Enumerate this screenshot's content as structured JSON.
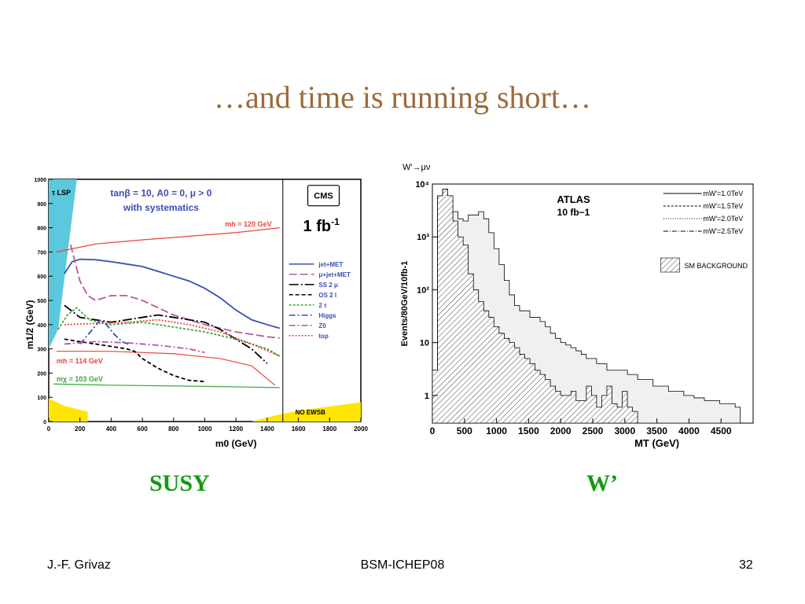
{
  "slide": {
    "title": "…and time is running short…",
    "captions": {
      "left": "SUSY",
      "right": "W’"
    },
    "footer": {
      "left": "J.-F. Grivaz",
      "center": "BSM-ICHEP08",
      "right": "32"
    },
    "caption_color": "#139a13",
    "title_color": "#9b6b3a"
  },
  "chart_data": [
    {
      "type": "line",
      "xlabel": "m0 (GeV)",
      "ylabel": "m1/2 (GeV)",
      "xlim": [
        0,
        2000
      ],
      "ylim": [
        0,
        1000
      ],
      "x_ticks": [
        "0",
        "200",
        "400",
        "600",
        "800",
        "1000",
        "1200",
        "1400",
        "1600",
        "1800",
        "2000"
      ],
      "y_ticks": [
        "0",
        "100",
        "200",
        "300",
        "400",
        "500",
        "600",
        "700",
        "800",
        "900",
        "1000"
      ],
      "header": "tanβ = 10, A0 = 0, μ > 0",
      "subheader": "with systematics",
      "experiment": "CMS",
      "luminosity": "1 fb",
      "luminosity_exp": "-1",
      "regions": {
        "lsp": "τ LSP",
        "no_ewsb": "NO EWSB"
      },
      "mass_labels": [
        "mh = 120 GeV",
        "mh = 114 GeV",
        "mχ = 103 GeV"
      ],
      "colors": {
        "lsp": "#5bc8dd",
        "ewsb": "#ffe600",
        "mh": "#e8453c",
        "mchi": "#3aa63a"
      },
      "mh_contours": [
        {
          "name": "mh = 120 GeV",
          "x": [
            50,
            300,
            600,
            900,
            1200,
            1480
          ],
          "y": [
            700,
            733,
            750,
            765,
            780,
            800
          ]
        },
        {
          "name": "mh = 114 GeV",
          "x": [
            50,
            400,
            800,
            1100,
            1300,
            1450
          ],
          "y": [
            290,
            290,
            280,
            260,
            230,
            150
          ]
        },
        {
          "name": "mχ = 103 GeV",
          "x": [
            30,
            400,
            800,
            1200,
            1480
          ],
          "y": [
            155,
            150,
            147,
            143,
            140
          ]
        }
      ],
      "series": [
        {
          "name": "jet+MET",
          "color": "#3a4fb0",
          "dash": "",
          "x": [
            100,
            150,
            200,
            300,
            400,
            500,
            600,
            700,
            800,
            900,
            1000,
            1100,
            1200,
            1300,
            1400,
            1480
          ],
          "y": [
            610,
            660,
            670,
            668,
            660,
            650,
            640,
            620,
            600,
            580,
            550,
            510,
            460,
            420,
            400,
            385
          ]
        },
        {
          "name": "μ+jet+MET",
          "color": "#b659a6",
          "dash": "10,4",
          "x": [
            140,
            200,
            250,
            300,
            400,
            500,
            600,
            700,
            800,
            900,
            1000,
            1100,
            1200,
            1300,
            1400,
            1480
          ],
          "y": [
            730,
            580,
            520,
            500,
            520,
            520,
            500,
            470,
            440,
            420,
            400,
            385,
            370,
            360,
            350,
            345
          ]
        },
        {
          "name": "SS 2 μ",
          "color": "#000000",
          "dash": "12,3,2,3",
          "x": [
            100,
            200,
            300,
            400,
            500,
            600,
            700,
            800,
            900,
            1000,
            1100,
            1200,
            1300,
            1400
          ],
          "y": [
            480,
            430,
            420,
            410,
            420,
            430,
            440,
            430,
            420,
            410,
            380,
            340,
            300,
            240
          ]
        },
        {
          "name": "OS 2 l",
          "color": "#000000",
          "dash": "5,3",
          "x": [
            100,
            200,
            300,
            400,
            500,
            550,
            600,
            700,
            800,
            900,
            1000
          ],
          "y": [
            340,
            330,
            320,
            310,
            300,
            290,
            260,
            220,
            190,
            170,
            165
          ]
        },
        {
          "name": "2 τ",
          "color": "#3aa63a",
          "dash": "3,2",
          "x": [
            60,
            120,
            180,
            260,
            400,
            600,
            800,
            1000,
            1200,
            1400,
            1480
          ],
          "y": [
            380,
            440,
            470,
            420,
            400,
            410,
            390,
            370,
            340,
            300,
            270
          ]
        },
        {
          "name": "Higgs",
          "color": "#3a4fb0",
          "dash": "8,3,2,3",
          "x": [
            200,
            280,
            330,
            370,
            420,
            470,
            510
          ],
          "y": [
            320,
            380,
            420,
            400,
            360,
            330,
            320
          ]
        },
        {
          "name": "Z0",
          "color": "#b659a6",
          "dash": "8,3,2,3",
          "x": [
            100,
            300,
            500,
            700,
            900,
            1000
          ],
          "y": [
            320,
            330,
            325,
            315,
            300,
            285
          ]
        },
        {
          "name": "top",
          "color": "#e8453c",
          "dash": "2,2",
          "x": [
            100,
            300,
            500,
            700,
            900,
            1100,
            1300,
            1480
          ],
          "y": [
            400,
            405,
            410,
            420,
            400,
            370,
            320,
            270
          ]
        }
      ]
    },
    {
      "type": "histogram",
      "corner_label": "W'→μν",
      "annotation": "ATLAS",
      "annotation2": "10 fb−1",
      "xlabel": "MT (GeV)",
      "ylabel": "Events/80GeV/10fb-1",
      "xlim": [
        0,
        5000
      ],
      "ylim": [
        0.3,
        10000
      ],
      "y_log": true,
      "x_ticks": [
        "0",
        "500",
        "1000",
        "1500",
        "2000",
        "2500",
        "3000",
        "3500",
        "4000",
        "4500"
      ],
      "y_ticks": [
        "1",
        "10",
        "10²",
        "10³",
        "10⁴"
      ],
      "legend": [
        {
          "name": "mW'=1.0TeV",
          "dash": ""
        },
        {
          "name": "mW'=1.5TeV",
          "dash": "3,2"
        },
        {
          "name": "mW'=2.0TeV",
          "dash": "1,2"
        },
        {
          "name": "mW'=2.5TeV",
          "dash": "6,2,1,2"
        }
      ],
      "background_label": "SM BACKGROUND",
      "bin_width": 80,
      "background": [
        3,
        6000,
        8000,
        6000,
        2000,
        1000,
        700,
        200,
        100,
        60,
        40,
        30,
        20,
        15,
        12,
        10,
        8,
        6,
        5,
        4,
        3,
        2.5,
        2,
        1.5,
        1.2,
        1,
        1,
        1.2,
        0.8,
        0.8,
        1.5,
        1,
        0.6,
        1,
        1.5,
        0.7,
        0.6,
        1.2,
        0.6,
        0.5
      ],
      "signal": [
        3,
        6000,
        8000,
        6000,
        3000,
        2200,
        2000,
        2600,
        2600,
        3000,
        2200,
        1200,
        600,
        300,
        150,
        80,
        50,
        40,
        40,
        30,
        30,
        25,
        20,
        15,
        12,
        10,
        9,
        8,
        7,
        6,
        5,
        5,
        4,
        4,
        3,
        3,
        3,
        3,
        2.5,
        2.5,
        2,
        2,
        2,
        1.5,
        1.5,
        1.5,
        1.2,
        1.2,
        1.2,
        1,
        1,
        0.9,
        0.9,
        0.8,
        0.8,
        0.8,
        0.7,
        0.7,
        0.7,
        0.6
      ]
    }
  ]
}
